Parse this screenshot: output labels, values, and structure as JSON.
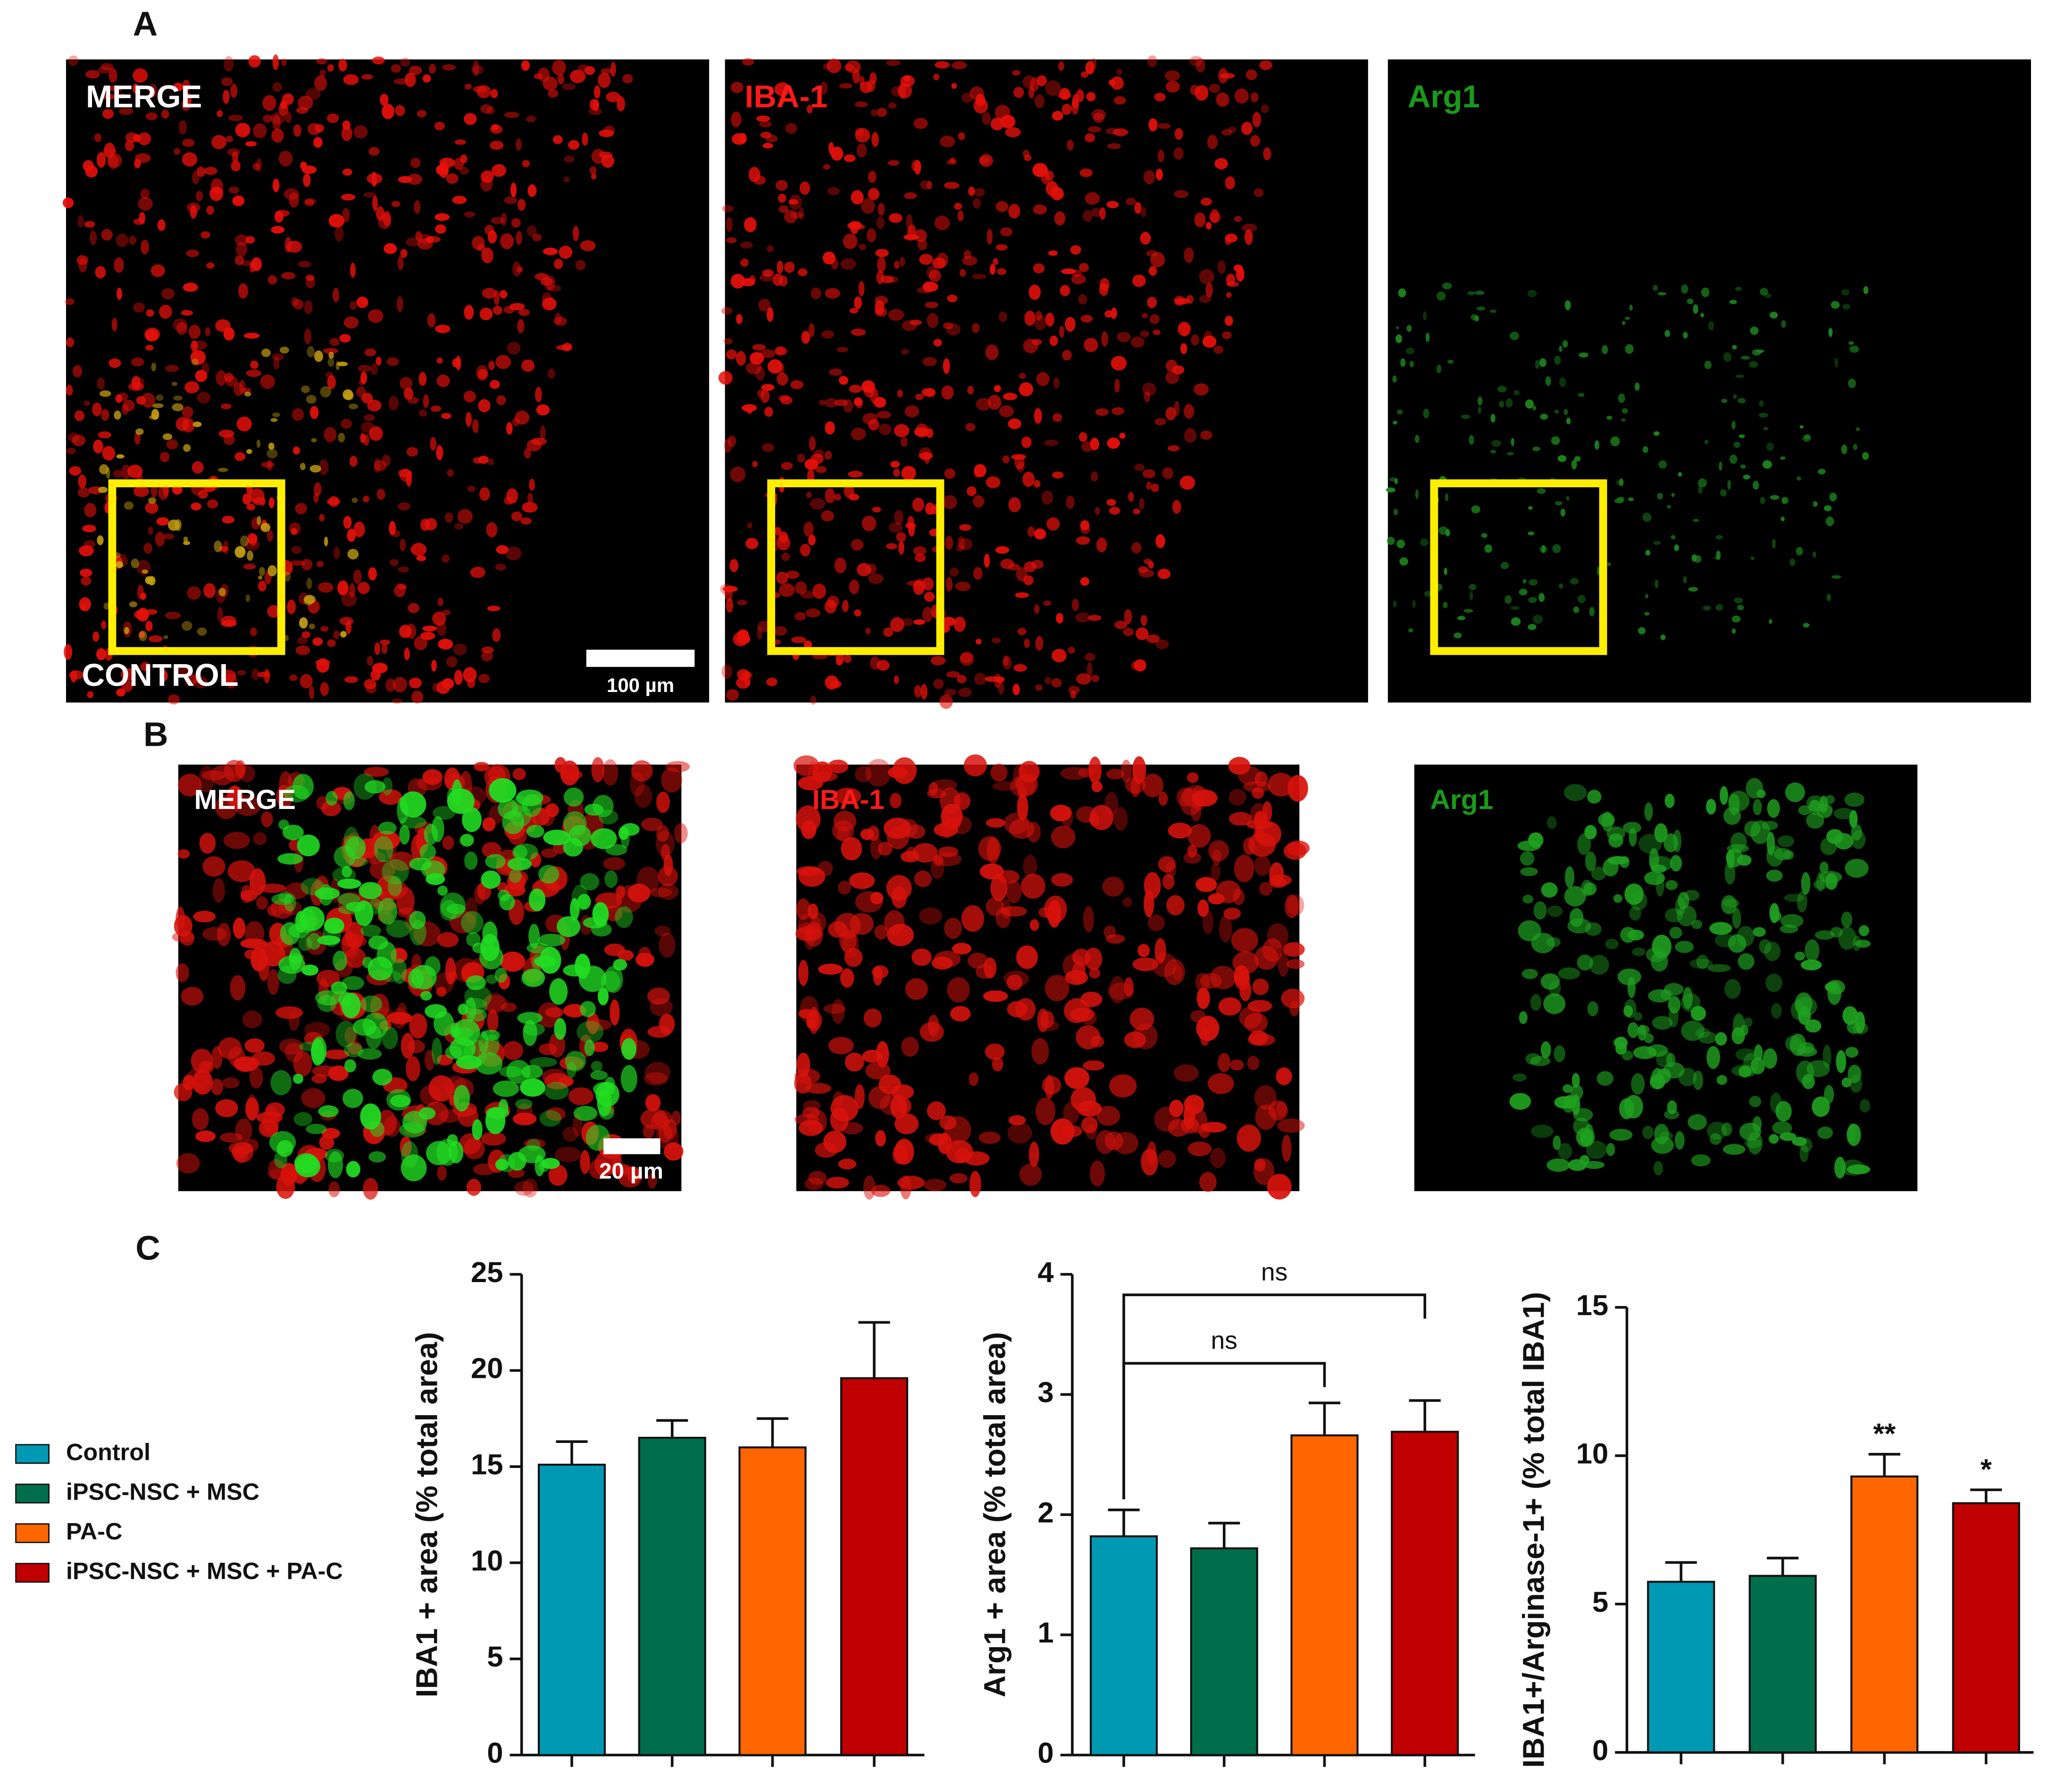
{
  "panels": {
    "a": "A",
    "b": "B",
    "c": "C"
  },
  "images": {
    "row_a": {
      "labels": [
        "MERGE",
        "IBA-1",
        "Arg1"
      ],
      "group": "CONTROL",
      "scale_bar": "100 µm"
    },
    "row_b": {
      "labels": [
        "MERGE",
        "IBA-1",
        "Arg1"
      ],
      "scale_bar": "20 µm"
    }
  },
  "legend": {
    "entries": [
      {
        "name": "Control",
        "color": "#0099b4"
      },
      {
        "name": "iPSC-NSC + MSC",
        "color": "#006e4a"
      },
      {
        "name": "PA-C",
        "color": "#ff6600"
      },
      {
        "name": "iPSC-NSC + MSC + PA-C",
        "color": "#c00000"
      }
    ]
  },
  "chart_data": [
    {
      "type": "bar",
      "y_label": "IBA1 + area (% total area)",
      "values": [
        15.1,
        16.5,
        16.0,
        19.6
      ],
      "errors": [
        1.2,
        0.9,
        1.5,
        2.9
      ],
      "ylim": [
        0,
        25
      ],
      "yticks": [
        0,
        5,
        10,
        15,
        20,
        25
      ]
    },
    {
      "type": "bar",
      "y_label": "Arg1 + area (% total area)",
      "values": [
        1.82,
        1.72,
        2.66,
        2.69
      ],
      "errors": [
        0.22,
        0.21,
        0.27,
        0.26
      ],
      "ylim": [
        0,
        4
      ],
      "yticks": [
        0,
        1,
        2,
        3,
        4
      ],
      "brackets": [
        {
          "from": 0,
          "to": 2,
          "label": "ns"
        },
        {
          "from": 0,
          "to": 3,
          "label": "ns"
        }
      ]
    },
    {
      "type": "bar",
      "y_label": "IBA1+/Arginase-1+ (% total IBA1)",
      "values": [
        5.75,
        5.95,
        9.3,
        8.4
      ],
      "errors": [
        0.65,
        0.6,
        0.75,
        0.45
      ],
      "ylim": [
        0,
        15
      ],
      "yticks": [
        0,
        5,
        10,
        15
      ],
      "significance": [
        null,
        null,
        "**",
        "*"
      ]
    }
  ]
}
